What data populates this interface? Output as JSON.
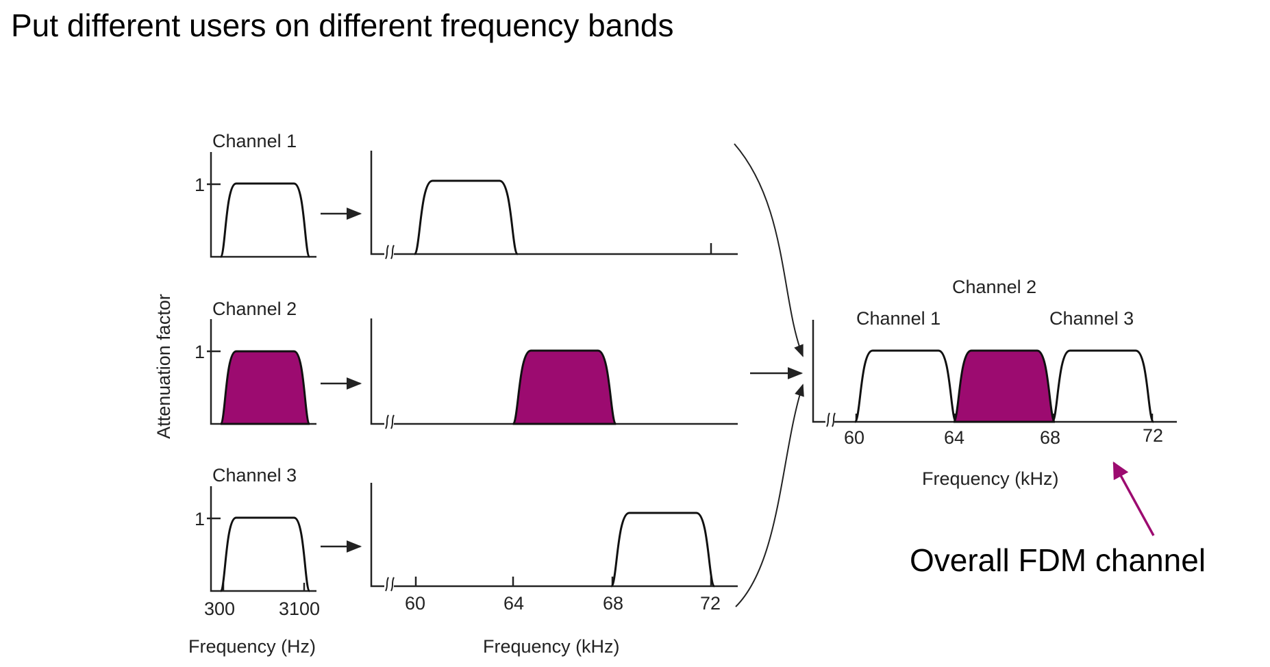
{
  "title": "Put different users on different frequency bands",
  "colors": {
    "fill": "#9c0b70",
    "arrow_accent": "#9c0b70",
    "ink": "#222222"
  },
  "baseband": {
    "y_axis_label": "Attenuation factor",
    "y_tick": "1",
    "channels": [
      {
        "label": "Channel 1",
        "filled": false
      },
      {
        "label": "Channel 2",
        "filled": true
      },
      {
        "label": "Channel 3",
        "filled": false
      }
    ],
    "x_ticks": [
      "300",
      "3100"
    ],
    "x_label": "Frequency (Hz)"
  },
  "shifted": {
    "x_ticks": [
      "60",
      "64",
      "68",
      "72"
    ],
    "x_label": "Frequency (kHz)",
    "bands_khz": [
      [
        60,
        64
      ],
      [
        64,
        68
      ],
      [
        68,
        72
      ]
    ]
  },
  "combined": {
    "channel_labels": [
      "Channel 1",
      "Channel 2",
      "Channel 3"
    ],
    "x_ticks": [
      "60",
      "64",
      "68",
      "72"
    ],
    "x_label": "Frequency (kHz)",
    "callout": "Overall FDM channel"
  }
}
